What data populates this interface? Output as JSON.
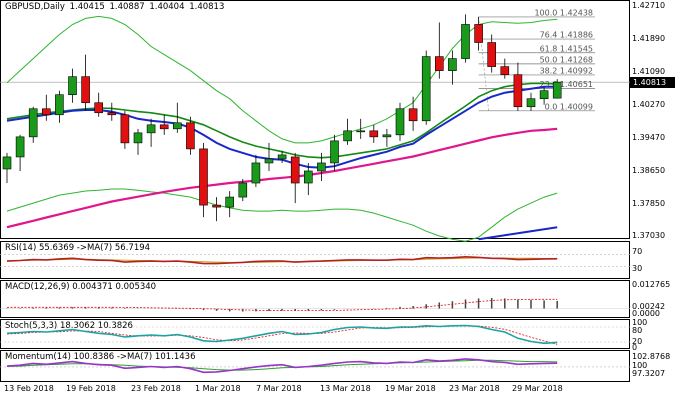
{
  "header": {
    "symbol": "GBPUSD,Daily",
    "open": "1.40415",
    "high": "1.40887",
    "low": "1.40404",
    "close": "1.40813"
  },
  "price_scale": {
    "ticks": [
      "1.42710",
      "1.41890",
      "1.41090",
      "1.40270",
      "1.39470",
      "1.38650",
      "1.37850",
      "1.37030"
    ],
    "current_price": "1.40813"
  },
  "fibonacci": [
    {
      "label": "100.0 1.42438",
      "price": 1.42438
    },
    {
      "label": "76.4 1.41886",
      "price": 1.41886
    },
    {
      "label": "61.8 1.41545",
      "price": 1.41545
    },
    {
      "label": "50.0 1.41268",
      "price": 1.41268
    },
    {
      "label": "38.2 1.40992",
      "price": 1.40992
    },
    {
      "label": "23.6 1.40651",
      "price": 1.40651
    },
    {
      "label": "0.0 1.40099",
      "price": 1.40099
    }
  ],
  "indicators": {
    "rsi": {
      "label": "RSI(14) 55.6369 ->MA(7) 56.7194",
      "ticks": [
        "70",
        "30"
      ]
    },
    "macd": {
      "label": "MACD(12,26,9) 0.004371 0.005340",
      "ticks": [
        "0.012765",
        "0.00242",
        "0.0000"
      ]
    },
    "stoch": {
      "label": "Stoch(5,3,3) 18.3062 10.3826",
      "ticks": [
        "100",
        "80",
        "20",
        "0"
      ]
    },
    "momentum": {
      "label": "Momentum(14) 100.8386 ->MA(7) 101.1436",
      "ticks": [
        "102.8768",
        "100",
        "97.3207"
      ]
    }
  },
  "x_axis": {
    "labels": [
      "13 Feb 2018",
      "19 Feb 2018",
      "23 Feb 2018",
      "1 Mar 2018",
      "7 Mar 2018",
      "13 Mar 2018",
      "19 Mar 2018",
      "23 Mar 2018",
      "29 Mar 2018"
    ]
  },
  "colors": {
    "bull": "#1a9a1a",
    "bear": "#e01010",
    "ma_fast": "#1a27c9",
    "ma_mid": "#138a13",
    "ma_slow": "#e0168f",
    "bollinger": "#2fb52f",
    "rsi": "#b32020",
    "stoch_main": "#1ba3a3",
    "stoch_signal": "#e01010",
    "momentum": "#9933cc"
  },
  "chart_data": {
    "type": "candlestick",
    "y_range": [
      1.3703,
      1.4271
    ],
    "candles": [
      {
        "o": 1.3865,
        "h": 1.3905,
        "l": 1.383,
        "c": 1.3895
      },
      {
        "o": 1.3895,
        "h": 1.395,
        "l": 1.386,
        "c": 1.3945
      },
      {
        "o": 1.3945,
        "h": 1.402,
        "l": 1.393,
        "c": 1.4015
      },
      {
        "o": 1.4015,
        "h": 1.405,
        "l": 1.3985,
        "c": 1.4
      },
      {
        "o": 1.4,
        "h": 1.406,
        "l": 1.398,
        "c": 1.405
      },
      {
        "o": 1.405,
        "h": 1.4115,
        "l": 1.403,
        "c": 1.4095
      },
      {
        "o": 1.4095,
        "h": 1.415,
        "l": 1.401,
        "c": 1.403
      },
      {
        "o": 1.403,
        "h": 1.4055,
        "l": 1.3995,
        "c": 1.4005
      },
      {
        "o": 1.4005,
        "h": 1.403,
        "l": 1.3985,
        "c": 1.4
      },
      {
        "o": 1.4,
        "h": 1.401,
        "l": 1.3915,
        "c": 1.393
      },
      {
        "o": 1.393,
        "h": 1.3965,
        "l": 1.39,
        "c": 1.3955
      },
      {
        "o": 1.3955,
        "h": 1.399,
        "l": 1.392,
        "c": 1.3975
      },
      {
        "o": 1.3975,
        "h": 1.4,
        "l": 1.395,
        "c": 1.3965
      },
      {
        "o": 1.3965,
        "h": 1.403,
        "l": 1.3955,
        "c": 1.398
      },
      {
        "o": 1.398,
        "h": 1.3995,
        "l": 1.39,
        "c": 1.3915
      },
      {
        "o": 1.3915,
        "h": 1.393,
        "l": 1.3745,
        "c": 1.3775
      },
      {
        "o": 1.3775,
        "h": 1.3795,
        "l": 1.3735,
        "c": 1.377
      },
      {
        "o": 1.377,
        "h": 1.381,
        "l": 1.3745,
        "c": 1.3795
      },
      {
        "o": 1.3795,
        "h": 1.384,
        "l": 1.3785,
        "c": 1.383
      },
      {
        "o": 1.383,
        "h": 1.39,
        "l": 1.382,
        "c": 1.388
      },
      {
        "o": 1.388,
        "h": 1.393,
        "l": 1.386,
        "c": 1.389
      },
      {
        "o": 1.389,
        "h": 1.391,
        "l": 1.388,
        "c": 1.39
      },
      {
        "o": 1.3895,
        "h": 1.3905,
        "l": 1.378,
        "c": 1.383
      },
      {
        "o": 1.383,
        "h": 1.388,
        "l": 1.38,
        "c": 1.386
      },
      {
        "o": 1.386,
        "h": 1.3905,
        "l": 1.3835,
        "c": 1.388
      },
      {
        "o": 1.388,
        "h": 1.395,
        "l": 1.386,
        "c": 1.3935
      },
      {
        "o": 1.3935,
        "h": 1.399,
        "l": 1.3925,
        "c": 1.396
      },
      {
        "o": 1.396,
        "h": 1.399,
        "l": 1.394,
        "c": 1.396
      },
      {
        "o": 1.396,
        "h": 1.3975,
        "l": 1.393,
        "c": 1.3945
      },
      {
        "o": 1.3945,
        "h": 1.3965,
        "l": 1.392,
        "c": 1.395
      },
      {
        "o": 1.395,
        "h": 1.403,
        "l": 1.3935,
        "c": 1.4015
      },
      {
        "o": 1.4015,
        "h": 1.4045,
        "l": 1.396,
        "c": 1.3985
      },
      {
        "o": 1.3985,
        "h": 1.416,
        "l": 1.3975,
        "c": 1.4145
      },
      {
        "o": 1.4145,
        "h": 1.423,
        "l": 1.409,
        "c": 1.411
      },
      {
        "o": 1.411,
        "h": 1.416,
        "l": 1.4075,
        "c": 1.414
      },
      {
        "o": 1.414,
        "h": 1.425,
        "l": 1.413,
        "c": 1.4225
      },
      {
        "o": 1.4225,
        "h": 1.4244,
        "l": 1.416,
        "c": 1.418
      },
      {
        "o": 1.418,
        "h": 1.42,
        "l": 1.4105,
        "c": 1.412
      },
      {
        "o": 1.412,
        "h": 1.414,
        "l": 1.409,
        "c": 1.41
      },
      {
        "o": 1.41,
        "h": 1.413,
        "l": 1.401,
        "c": 1.402
      },
      {
        "o": 1.402,
        "h": 1.4055,
        "l": 1.401,
        "c": 1.404
      },
      {
        "o": 1.404,
        "h": 1.407,
        "l": 1.4025,
        "c": 1.406
      },
      {
        "o": 1.40415,
        "h": 1.40887,
        "l": 1.40404,
        "c": 1.40813
      }
    ],
    "ma_fast": [
      1.3985,
      1.399,
      1.3995,
      1.4,
      1.4005,
      1.401,
      1.4012,
      1.4012,
      1.4008,
      1.4,
      1.399,
      1.3985,
      1.3982,
      1.3978,
      1.3968,
      1.395,
      1.393,
      1.3915,
      1.3905,
      1.3895,
      1.389,
      1.3888,
      1.3878,
      1.387,
      1.3868,
      1.3872,
      1.3882,
      1.3892,
      1.39,
      1.3908,
      1.392,
      1.3928,
      1.395,
      1.397,
      1.399,
      1.401,
      1.403,
      1.4045,
      1.4055,
      1.406,
      1.4065,
      1.407,
      1.407
    ],
    "ma_mid": [
      1.399,
      1.3995,
      1.4,
      1.4005,
      1.4008,
      1.4012,
      1.4015,
      1.4017,
      1.4016,
      1.4012,
      1.4008,
      1.4005,
      1.4,
      1.3995,
      1.3985,
      1.3975,
      1.396,
      1.3945,
      1.3932,
      1.3922,
      1.3915,
      1.3908,
      1.39,
      1.3895,
      1.3893,
      1.3895,
      1.39,
      1.3905,
      1.391,
      1.3915,
      1.3925,
      1.3935,
      1.3955,
      1.3978,
      1.4,
      1.4022,
      1.4045,
      1.406,
      1.407,
      1.4075,
      1.4078,
      1.4078,
      1.4077
    ],
    "ma_slow": [
      1.372,
      1.3728,
      1.3736,
      1.3744,
      1.3752,
      1.376,
      1.3768,
      1.3776,
      1.3784,
      1.379,
      1.3796,
      1.3802,
      1.3808,
      1.3813,
      1.3818,
      1.3822,
      1.3826,
      1.383,
      1.3833,
      1.3836,
      1.384,
      1.3843,
      1.3846,
      1.385,
      1.3855,
      1.386,
      1.3866,
      1.3872,
      1.3878,
      1.3884,
      1.389,
      1.3896,
      1.3904,
      1.3912,
      1.392,
      1.3928,
      1.3936,
      1.3944,
      1.395,
      1.3955,
      1.396,
      1.3962,
      1.3965
    ],
    "bb_upper": [
      1.408,
      1.411,
      1.414,
      1.417,
      1.42,
      1.4225,
      1.424,
      1.4245,
      1.424,
      1.4225,
      1.42,
      1.417,
      1.415,
      1.413,
      1.411,
      1.4085,
      1.406,
      1.404,
      1.401,
      1.3985,
      1.396,
      1.394,
      1.393,
      1.393,
      1.3935,
      1.3945,
      1.3955,
      1.3965,
      1.3975,
      1.399,
      1.401,
      1.403,
      1.4075,
      1.412,
      1.4165,
      1.42,
      1.4225,
      1.4232,
      1.423,
      1.4228,
      1.423,
      1.4235,
      1.4238
    ],
    "bb_lower": [
      1.376,
      1.377,
      1.378,
      1.379,
      1.38,
      1.3805,
      1.381,
      1.3812,
      1.3815,
      1.3815,
      1.3812,
      1.3808,
      1.3805,
      1.38,
      1.3795,
      1.3785,
      1.3775,
      1.3768,
      1.3762,
      1.376,
      1.376,
      1.3762,
      1.376,
      1.376,
      1.3762,
      1.3765,
      1.3765,
      1.3762,
      1.3755,
      1.3745,
      1.3735,
      1.3725,
      1.371,
      1.3698,
      1.369,
      1.3685,
      1.3695,
      1.372,
      1.3745,
      1.3765,
      1.378,
      1.3795,
      1.3805
    ],
    "ma_long": [
      null,
      null,
      null,
      null,
      null,
      null,
      null,
      null,
      null,
      null,
      null,
      null,
      null,
      null,
      null,
      null,
      null,
      null,
      null,
      null,
      null,
      null,
      null,
      null,
      null,
      null,
      null,
      null,
      null,
      null,
      null,
      null,
      null,
      null,
      null,
      null,
      1.369,
      1.3695,
      1.37,
      1.3705,
      1.371,
      1.3715,
      1.372
    ],
    "rsi": [
      48,
      50,
      53,
      52,
      55,
      57,
      53,
      51,
      50,
      45,
      47,
      48,
      47,
      48,
      45,
      40,
      40,
      42,
      44,
      47,
      48,
      48,
      45,
      47,
      48,
      50,
      52,
      52,
      51,
      51,
      54,
      53,
      59,
      58,
      59,
      62,
      60,
      57,
      56,
      53,
      54,
      55,
      55.6
    ],
    "rsi_ma": [
      49,
      50,
      51,
      52,
      53,
      54,
      54,
      53,
      52,
      51,
      50,
      49,
      48,
      48,
      47,
      46,
      45,
      44,
      44,
      44,
      45,
      46,
      46,
      46,
      47,
      48,
      49,
      50,
      51,
      51,
      52,
      53,
      54,
      55,
      56,
      57,
      58,
      58,
      58,
      57,
      57,
      56.5,
      56.7
    ],
    "macd_hist": [
      0.0002,
      0.0003,
      0.0005,
      0.0006,
      0.0007,
      0.0008,
      0.0008,
      0.0007,
      0.0006,
      0.0004,
      0.0002,
      0.0001,
      0.0,
      -0.0001,
      -0.0003,
      -0.0008,
      -0.0012,
      -0.0015,
      -0.0016,
      -0.0015,
      -0.0013,
      -0.0011,
      -0.0012,
      -0.0011,
      -0.0009,
      -0.0006,
      -0.0003,
      0.0,
      0.0002,
      0.0004,
      0.001,
      0.0015,
      0.0025,
      0.0035,
      0.0042,
      0.0052,
      0.0058,
      0.006,
      0.0058,
      0.0052,
      0.005,
      0.0047,
      0.0044
    ],
    "macd_signal": [
      0.0008,
      0.0008,
      0.0008,
      0.0008,
      0.0008,
      0.0008,
      0.0008,
      0.0008,
      0.0008,
      0.0007,
      0.0006,
      0.0005,
      0.0004,
      0.0003,
      0.0002,
      0.0,
      -0.0002,
      -0.0005,
      -0.0007,
      -0.0009,
      -0.001,
      -0.0011,
      -0.0011,
      -0.0011,
      -0.0011,
      -0.001,
      -0.0008,
      -0.0006,
      -0.0004,
      -0.0002,
      0.0,
      0.0004,
      0.001,
      0.0018,
      0.0025,
      0.0032,
      0.004,
      0.0046,
      0.005,
      0.0052,
      0.0053,
      0.0053,
      0.0053
    ],
    "stoch_main": [
      55,
      58,
      62,
      60,
      65,
      70,
      62,
      55,
      50,
      40,
      45,
      48,
      45,
      50,
      40,
      25,
      22,
      28,
      35,
      45,
      55,
      62,
      50,
      52,
      58,
      70,
      78,
      80,
      76,
      75,
      80,
      80,
      85,
      82,
      85,
      86,
      82,
      70,
      60,
      35,
      22,
      15,
      18.3
    ],
    "stoch_signal": [
      52,
      54,
      58,
      60,
      61,
      64,
      64,
      62,
      55,
      48,
      44,
      44,
      45,
      47,
      45,
      38,
      29,
      25,
      28,
      36,
      45,
      54,
      56,
      55,
      54,
      60,
      68,
      76,
      78,
      77,
      77,
      78,
      81,
      82,
      84,
      84,
      84,
      79,
      71,
      55,
      39,
      24,
      10.4
    ],
    "momentum": [
      100.2,
      100.4,
      100.8,
      100.6,
      100.9,
      101.2,
      100.8,
      100.5,
      100.4,
      99.7,
      99.9,
      100.1,
      99.9,
      100.1,
      99.6,
      98.8,
      98.9,
      99.2,
      99.6,
      100.0,
      100.3,
      100.5,
      99.9,
      100.1,
      100.4,
      100.8,
      101.1,
      101.2,
      100.9,
      100.8,
      101.1,
      101.0,
      101.6,
      101.3,
      101.5,
      101.8,
      101.6,
      101.2,
      101.0,
      100.6,
      100.7,
      100.8,
      100.84
    ],
    "momentum_ma": [
      100.1,
      100.2,
      100.4,
      100.5,
      100.6,
      100.7,
      100.7,
      100.6,
      100.5,
      100.4,
      100.2,
      100.1,
      100.0,
      99.9,
      99.8,
      99.6,
      99.4,
      99.3,
      99.3,
      99.4,
      99.6,
      99.8,
      99.9,
      100.0,
      100.1,
      100.3,
      100.5,
      100.6,
      100.7,
      100.8,
      100.9,
      101.0,
      101.1,
      101.2,
      101.3,
      101.4,
      101.5,
      101.5,
      101.4,
      101.3,
      101.2,
      101.2,
      101.14
    ]
  }
}
